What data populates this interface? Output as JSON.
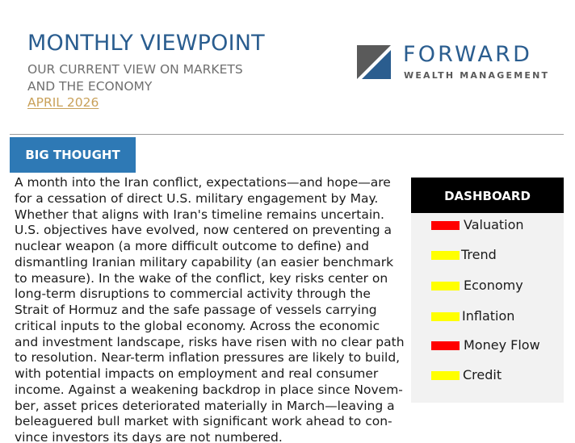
{
  "header": {
    "title": "MONTHLY VIEWPOINT",
    "subtitle_line1": "OUR CURRENT VIEW ON MARKETS",
    "subtitle_line2": "AND THE ECONOMY",
    "date": "APRIL 2026"
  },
  "logo": {
    "name": "FORWARD",
    "tagline": "WEALTH MANAGEMENT"
  },
  "section": {
    "label": "BIG THOUGHT"
  },
  "body": {
    "lines": [
      "A month into the Iran conflict, expectations—and hope—are",
      "for a cessation of direct U.S. military engagement by May.",
      "Whether that aligns with Iran's timeline remains uncertain.",
      "U.S. objectives have evolved, now centered on preventing a",
      "nuclear weapon (a more difficult outcome to define) and",
      "dismantling Iranian military capability (an easier benchmark",
      "to measure). In the wake of the conflict, key risks center on",
      "long-term disruptions to commercial activity through the",
      "Strait of Hormuz and the safe passage of vessels carrying",
      "critical inputs to the global economy. Across the economic",
      "and investment landscape, risks have risen with no clear path",
      "to resolution. Near-term inflation pressures are likely to build,",
      "with potential impacts on employment and real consumer",
      "income. Against a weakening backdrop in place since Novem-",
      "ber, asset prices deteriorated materially in March—leaving a",
      "beleaguered bull market with significant work ahead to con-",
      "vince investors its days are not numbered."
    ]
  },
  "dashboard": {
    "title": "DASHBOARD",
    "items": [
      {
        "label": "Valuation",
        "status_color": "#ff0000"
      },
      {
        "label": "Trend",
        "status_color": "#ffff00"
      },
      {
        "label": "Economy",
        "status_color": "#ffff00"
      },
      {
        "label": "Inflation",
        "status_color": "#ffff00"
      },
      {
        "label": "Money Flow",
        "status_color": "#ff0000"
      },
      {
        "label": "Credit",
        "status_color": "#ffff00"
      }
    ]
  }
}
